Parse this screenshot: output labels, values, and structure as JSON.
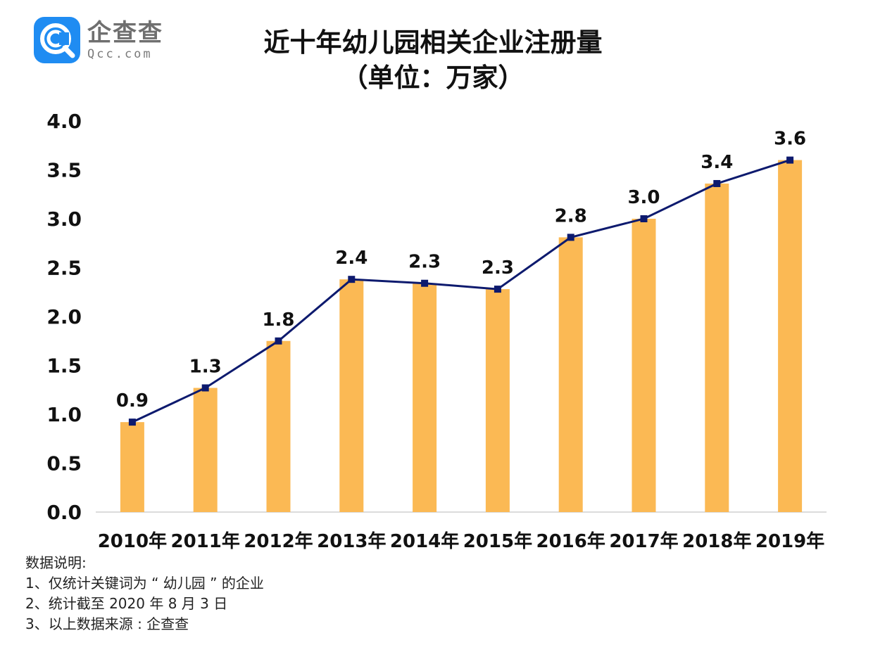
{
  "logo": {
    "name_cn": "企查查",
    "domain": "Qcc.com",
    "mark_color": "#1f8cf2"
  },
  "header": {
    "title_line1": "近十年幼儿园相关企业注册量",
    "title_line2": "（单位：万家）"
  },
  "chart_data": {
    "type": "bar",
    "title": "近十年幼儿园相关企业注册量",
    "subtitle": "（单位：万家）",
    "categories": [
      "2010年",
      "2011年",
      "2012年",
      "2013年",
      "2014年",
      "2015年",
      "2016年",
      "2017年",
      "2018年",
      "2019年"
    ],
    "values": [
      0.92,
      1.27,
      1.75,
      2.38,
      2.34,
      2.28,
      2.81,
      3.0,
      3.36,
      3.6
    ],
    "data_labels": [
      "0.9",
      "1.3",
      "1.8",
      "2.4",
      "2.3",
      "2.3",
      "2.8",
      "3.0",
      "3.4",
      "3.6"
    ],
    "overlay_line": true,
    "ylim": [
      0,
      4.0
    ],
    "y_ticks": [
      "0.0",
      "0.5",
      "1.0",
      "1.5",
      "2.0",
      "2.5",
      "3.0",
      "3.5",
      "4.0"
    ],
    "grid": false,
    "legend": "none",
    "bar_color": "#fbb954",
    "line_color": "#0d1a6e"
  },
  "notes": {
    "heading": "数据说明:",
    "items": [
      "1、仅统计关键词为 “ 幼儿园 ” 的企业",
      "2、统计截至 2020 年 8 月 3 日",
      "3、以上数据来源 : 企查查"
    ]
  }
}
